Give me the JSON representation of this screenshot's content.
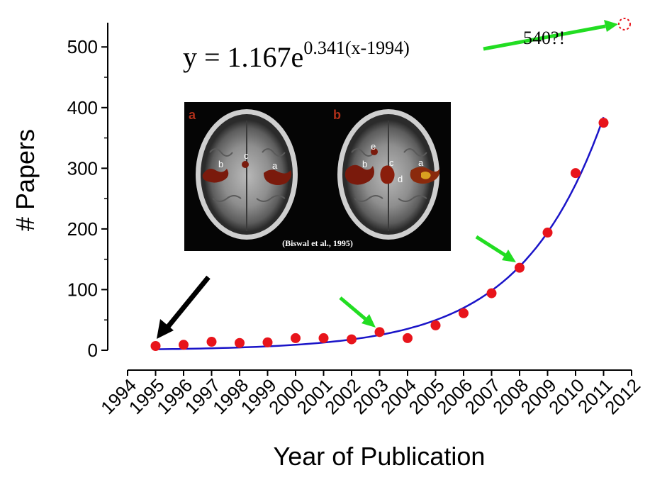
{
  "chart_data": {
    "type": "scatter",
    "xlabel": "Year of Publication",
    "ylabel": "# Papers",
    "xlim": [
      1994,
      2012
    ],
    "ylim": [
      0,
      540
    ],
    "x_ticks": [
      1994,
      1995,
      1996,
      1997,
      1998,
      1999,
      2000,
      2001,
      2002,
      2003,
      2004,
      2005,
      2006,
      2007,
      2008,
      2009,
      2010,
      2011,
      2012
    ],
    "y_ticks": [
      0,
      100,
      200,
      300,
      400,
      500
    ],
    "points": [
      {
        "x": 1995,
        "y": 7
      },
      {
        "x": 1996,
        "y": 9
      },
      {
        "x": 1997,
        "y": 14
      },
      {
        "x": 1998,
        "y": 12
      },
      {
        "x": 1999,
        "y": 13
      },
      {
        "x": 2000,
        "y": 20
      },
      {
        "x": 2001,
        "y": 20
      },
      {
        "x": 2002,
        "y": 18
      },
      {
        "x": 2003,
        "y": 30
      },
      {
        "x": 2004,
        "y": 20
      },
      {
        "x": 2005,
        "y": 41
      },
      {
        "x": 2006,
        "y": 61
      },
      {
        "x": 2007,
        "y": 94
      },
      {
        "x": 2008,
        "y": 136
      },
      {
        "x": 2009,
        "y": 194
      },
      {
        "x": 2010,
        "y": 292
      },
      {
        "x": 2011,
        "y": 375
      }
    ],
    "projected_point": {
      "x": 2012,
      "y": 540
    },
    "fit": {
      "a": 1.167,
      "b": 0.341,
      "x0": 1994,
      "from": 1995,
      "to": 2011
    },
    "equation": {
      "base": "y = 1.167e",
      "exponent": "0.341(x-1994)"
    },
    "projection_label": "540?!",
    "highlighted_years": [
      1995,
      2003,
      2008
    ],
    "colors": {
      "points": "#e8141b",
      "fit": "#1a14c8",
      "arrow_black": "#000000",
      "arrow_green": "#22dd22",
      "projected": "#e8141b"
    },
    "inset": {
      "panel_a": "a",
      "panel_b": "b",
      "labels_a": [
        "b",
        "c",
        "a"
      ],
      "labels_b": [
        "e",
        "b",
        "c",
        "d",
        "a"
      ],
      "caption": "(Biswal et al., 1995)"
    }
  }
}
